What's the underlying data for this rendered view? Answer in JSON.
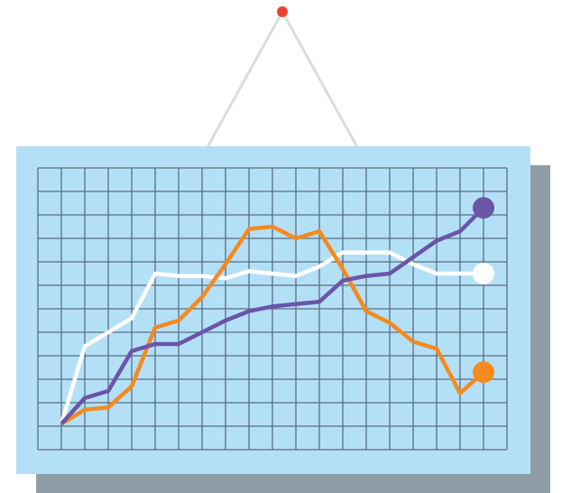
{
  "chart_data": {
    "type": "line",
    "x": [
      1,
      2,
      3,
      4,
      5,
      6,
      7,
      8,
      9,
      10,
      11,
      12,
      13,
      14,
      15,
      16,
      17,
      18,
      19
    ],
    "xlim": [
      0,
      20
    ],
    "ylim": [
      0,
      12
    ],
    "grid": true,
    "series": [
      {
        "color": "#ffffff",
        "values": [
          1.1,
          4.4,
          5,
          5.6,
          7.5,
          7.4,
          7.4,
          7.3,
          7.6,
          7.5,
          7.4,
          7.8,
          8.4,
          8.4,
          8.4,
          7.9,
          7.5,
          7.5,
          7.5
        ]
      },
      {
        "color": "#f58a1f",
        "values": [
          1.1,
          1.7,
          1.8,
          2.7,
          5.2,
          5.5,
          6.5,
          7.9,
          9.4,
          9.5,
          9,
          9.3,
          7.7,
          5.9,
          5.4,
          4.6,
          4.3,
          2.4,
          3.3
        ]
      },
      {
        "color": "#6a55a8",
        "values": [
          1.1,
          2.2,
          2.5,
          4.2,
          4.5,
          4.5,
          5,
          5.5,
          5.9,
          6.1,
          6.2,
          6.3,
          7.2,
          7.4,
          7.5,
          8.2,
          8.9,
          9.3,
          10.3
        ]
      }
    ]
  }
}
